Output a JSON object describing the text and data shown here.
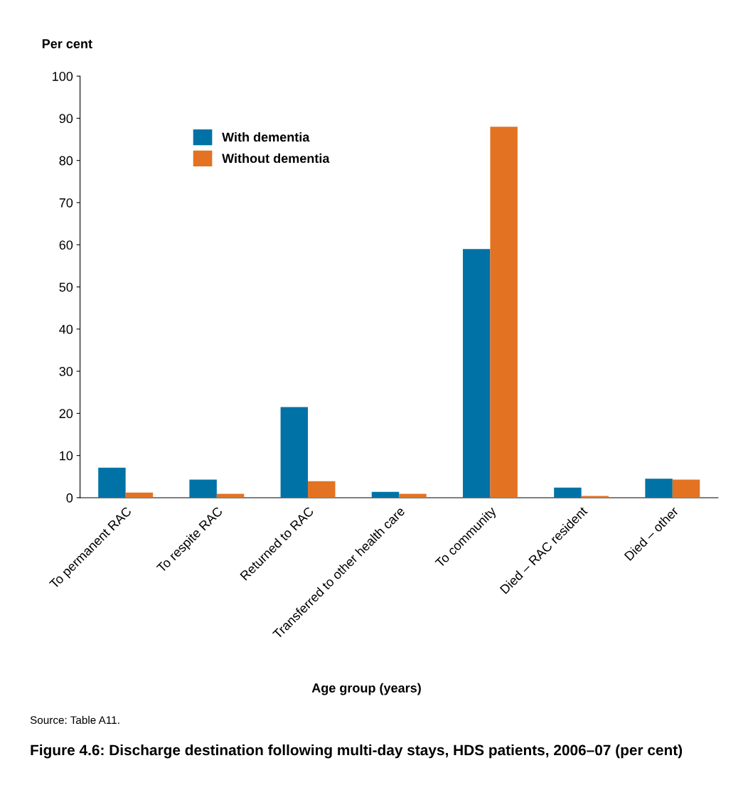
{
  "chart_data": {
    "type": "bar",
    "title": "Figure 4.6: Discharge destination following multi-day stays, HDS patients, 2006–07 (per cent)",
    "ylabel": "Per cent",
    "xlabel": "Age group (years)",
    "categories": [
      "To permanent RAC",
      "To respite RAC",
      "Returned to RAC",
      "Transferred to other health care",
      "To community",
      "Died – RAC resident",
      "Died – other"
    ],
    "series": [
      {
        "name": "With dementia",
        "color": "#0072a6",
        "values": [
          7.1,
          4.3,
          21.5,
          1.4,
          59,
          2.4,
          4.5
        ]
      },
      {
        "name": "Without dementia",
        "color": "#e37222",
        "values": [
          1.2,
          0.9,
          3.9,
          0.9,
          88,
          0.4,
          4.3
        ]
      }
    ],
    "ylim": [
      0,
      100
    ],
    "yticks": [
      0,
      10,
      20,
      30,
      40,
      50,
      60,
      70,
      80,
      90,
      100
    ],
    "grid": false,
    "legend": "top left",
    "annotations": [
      "Source: Table A11."
    ]
  }
}
